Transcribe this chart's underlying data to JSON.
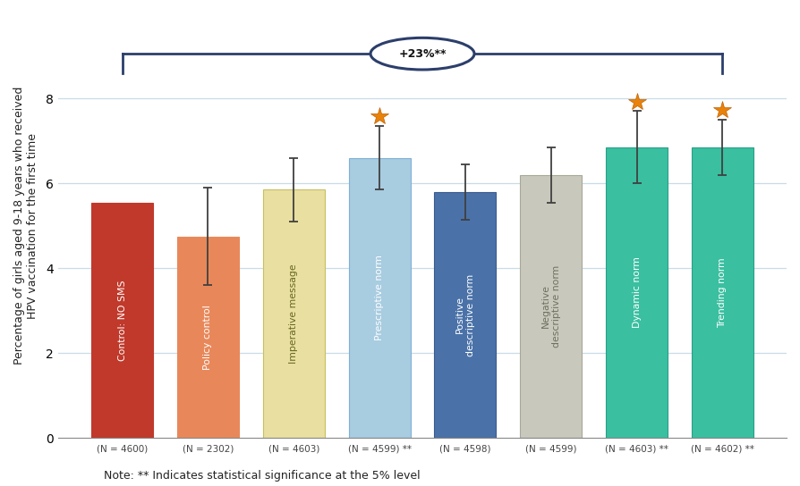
{
  "categories": [
    "Control: NO SMS",
    "Policy control",
    "Imperative message",
    "Prescriptive norm",
    "Positive\ndescriptive norm",
    "Negative\ndescriptive norm",
    "Dynamic norm",
    "Trending norm"
  ],
  "values": [
    5.55,
    4.75,
    5.85,
    6.6,
    5.8,
    6.2,
    6.85,
    6.85
  ],
  "errors": [
    0.0,
    1.15,
    0.75,
    0.75,
    0.65,
    0.65,
    0.85,
    0.65
  ],
  "bar_colors": [
    "#c0392b",
    "#e8885a",
    "#e8dfa0",
    "#a8cce0",
    "#4a72a8",
    "#c8c8bc",
    "#3abfa0",
    "#3abfa0"
  ],
  "bar_edge_colors": [
    "#c0392b",
    "#e8885a",
    "#c8c060",
    "#80b0d8",
    "#3a5a90",
    "#a8a898",
    "#28a088",
    "#28a088"
  ],
  "text_colors": [
    "white",
    "white",
    "#666620",
    "white",
    "white",
    "#707060",
    "white",
    "white"
  ],
  "n_labels": [
    "(N = 4600)",
    "(N = 2302)",
    "(N = 4603)",
    "(N = 4599) **",
    "(N = 4598)",
    "(N = 4599)",
    "(N = 4603) **",
    "(N = 4602) **"
  ],
  "star_bars": [
    3,
    6,
    7
  ],
  "ylabel": "Percentage of girls aged 9-18 years who received\nHPV vaccination for the first time",
  "ylim": [
    0,
    10
  ],
  "yticks": [
    0,
    2,
    4,
    6,
    8
  ],
  "bracket_text": "+23%**",
  "note_text": "Note: ** Indicates statistical significance at the 5% level",
  "background_color": "#ffffff",
  "grid_color": "#c8dce8",
  "dark_navy": "#2c3e6b",
  "star_color": "#e8820a"
}
